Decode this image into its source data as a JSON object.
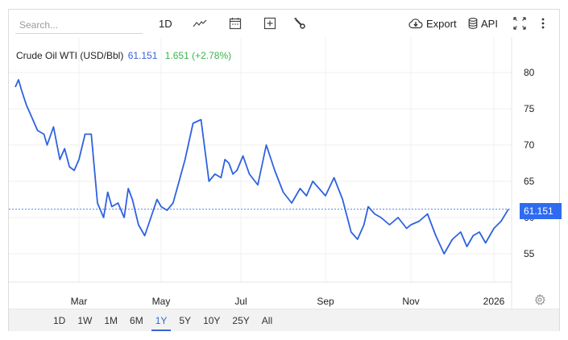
{
  "toolbar": {
    "search_placeholder": "Search...",
    "interval_label": "1D",
    "chart_type_icon": "line-chart-icon",
    "calendar_icon": "calendar-icon",
    "add_indicator_icon": "plus-box-icon",
    "settings_icon": "wrench-icon",
    "export_label": "Export",
    "export_icon": "cloud-download-icon",
    "api_label": "API",
    "api_icon": "database-icon",
    "fullscreen_icon": "expand-icon",
    "more_icon": "vertical-dots-icon"
  },
  "legend": {
    "name": "Crude Oil WTI (USD/Bbl)",
    "price": "61.151",
    "change": "1.651 (+2.78%)"
  },
  "price_tag": "61.151",
  "range_buttons": [
    {
      "label": "1D",
      "active": false
    },
    {
      "label": "1W",
      "active": false
    },
    {
      "label": "1M",
      "active": false
    },
    {
      "label": "6M",
      "active": false
    },
    {
      "label": "1Y",
      "active": true
    },
    {
      "label": "5Y",
      "active": false
    },
    {
      "label": "10Y",
      "active": false
    },
    {
      "label": "25Y",
      "active": false
    },
    {
      "label": "All",
      "active": false
    }
  ],
  "colors": {
    "line": "#2f62e0",
    "price_text": "#3a62d8",
    "change_positive": "#3ab54a",
    "price_tag_bg": "#2f6bf0",
    "grid": "#efefef"
  },
  "chart_data": {
    "type": "line",
    "title": "Crude Oil WTI (USD/Bbl)",
    "xlabel": "",
    "ylabel": "",
    "x_tick_labels": [
      "Mar",
      "May",
      "Jul",
      "Sep",
      "Nov",
      "2026"
    ],
    "y_tick_labels": [
      "55",
      "60",
      "65",
      "70",
      "75",
      "80"
    ],
    "ylim": [
      50,
      82
    ],
    "grid": true,
    "legend_position": "top-left",
    "last_value": 61.151,
    "change": 1.651,
    "change_pct": 2.78,
    "series": [
      {
        "name": "Crude Oil WTI",
        "x_months": [
          1.0,
          1.1,
          1.2,
          1.35,
          1.5,
          1.7,
          1.9,
          2.0,
          2.2,
          2.4,
          2.55,
          2.7,
          2.85,
          3.0,
          3.15,
          3.3,
          3.45,
          3.6,
          3.7,
          3.8,
          3.95,
          4.1,
          4.2,
          4.3,
          4.45,
          4.6,
          4.75,
          4.9,
          5.0,
          5.15,
          5.3,
          5.45,
          5.6,
          5.8,
          6.0,
          6.2,
          6.35,
          6.5,
          6.6,
          6.7,
          6.8,
          6.9,
          7.05,
          7.2,
          7.4,
          7.6,
          7.8,
          8.0,
          8.2,
          8.4,
          8.55,
          8.7,
          8.85,
          9.0,
          9.2,
          9.4,
          9.6,
          9.75,
          9.9,
          10.0,
          10.15,
          10.3,
          10.5,
          10.7,
          10.9,
          11.0,
          11.2,
          11.4,
          11.6,
          11.8,
          12.0,
          12.2,
          12.35,
          12.5,
          12.65,
          12.8,
          13.0,
          13.15,
          13.3
        ],
        "values": [
          78.0,
          79.0,
          77.5,
          75.5,
          74.0,
          72.0,
          71.5,
          70.0,
          72.5,
          68.0,
          69.5,
          67.0,
          66.5,
          68.0,
          71.5,
          71.5,
          62.0,
          60.0,
          63.5,
          61.5,
          62.0,
          60.0,
          64.0,
          62.5,
          59.0,
          57.5,
          60.0,
          62.5,
          61.5,
          61.0,
          62.0,
          65.0,
          68.0,
          73.0,
          73.5,
          65.0,
          66.0,
          65.5,
          68.0,
          67.5,
          66.0,
          66.5,
          68.5,
          66.0,
          64.5,
          70.0,
          66.5,
          63.5,
          62.0,
          64.0,
          63.0,
          65.0,
          64.0,
          63.0,
          65.5,
          62.5,
          58.0,
          57.0,
          59.0,
          61.5,
          60.5,
          60.0,
          59.0,
          60.0,
          58.5,
          59.0,
          59.5,
          60.5,
          57.5,
          55.0,
          57.0,
          58.0,
          56.0,
          57.5,
          58.0,
          56.5,
          58.5,
          59.5,
          61.15
        ]
      }
    ]
  }
}
